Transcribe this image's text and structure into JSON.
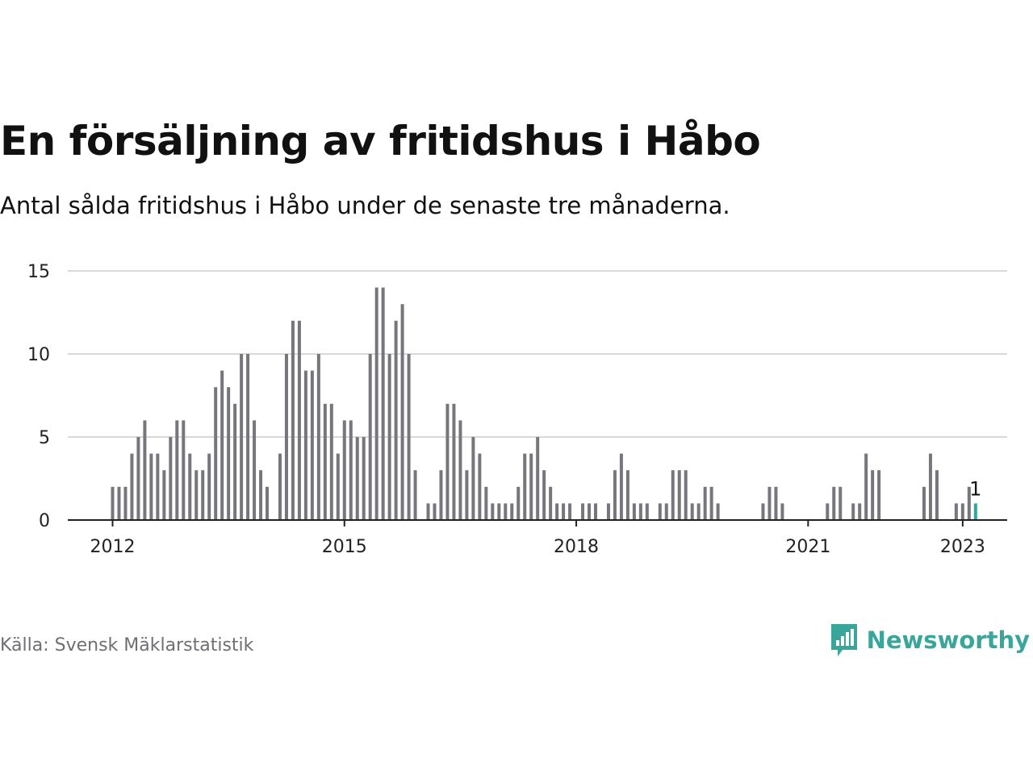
{
  "header": {
    "title": "En försäljning av fritidshus i Håbo",
    "subtitle": "Antal sålda fritidshus i Håbo under de senaste tre månaderna."
  },
  "footer": {
    "source": "Källa: Svensk Mäklarstatistik",
    "brand": "Newsworthy",
    "brand_icon": "newsworthy-logo-icon"
  },
  "colors": {
    "bar": "#77767c",
    "highlight": "#2aa9a0",
    "grid": "#d9d9d9",
    "axis": "#222222",
    "brand": "#3aa59a"
  },
  "chart_data": {
    "type": "bar",
    "title": "En försäljning av fritidshus i Håbo",
    "subtitle": "Antal sålda fritidshus i Håbo under de senaste tre månaderna.",
    "xlabel": "",
    "ylabel": "",
    "ylim": [
      0,
      15
    ],
    "yticks": [
      0,
      5,
      10,
      15
    ],
    "xticks": [
      {
        "label": "2012",
        "index": 0
      },
      {
        "label": "2015",
        "index": 36
      },
      {
        "label": "2018",
        "index": 72
      },
      {
        "label": "2021",
        "index": 108
      },
      {
        "label": "2023",
        "index": 132
      }
    ],
    "grid": true,
    "start": "2012-01",
    "frequency": "monthly",
    "values": [
      2,
      2,
      2,
      4,
      5,
      6,
      4,
      4,
      3,
      5,
      6,
      6,
      4,
      3,
      3,
      4,
      8,
      9,
      8,
      7,
      10,
      10,
      6,
      3,
      2,
      0,
      4,
      10,
      12,
      12,
      9,
      9,
      10,
      7,
      7,
      4,
      6,
      6,
      5,
      5,
      10,
      14,
      14,
      10,
      12,
      13,
      10,
      3,
      0,
      1,
      1,
      3,
      7,
      7,
      6,
      3,
      5,
      4,
      2,
      1,
      1,
      1,
      1,
      2,
      4,
      4,
      5,
      3,
      2,
      1,
      1,
      1,
      0,
      1,
      1,
      1,
      0,
      1,
      3,
      4,
      3,
      1,
      1,
      1,
      0,
      1,
      1,
      3,
      3,
      3,
      1,
      1,
      2,
      2,
      1,
      0,
      0,
      0,
      0,
      0,
      0,
      1,
      2,
      2,
      1,
      0,
      0,
      0,
      0,
      0,
      0,
      1,
      2,
      2,
      0,
      1,
      1,
      4,
      3,
      3,
      0,
      0,
      0,
      0,
      0,
      0,
      2,
      4,
      3,
      0,
      0,
      1,
      1,
      2,
      1
    ],
    "highlight_last": true,
    "annotation": "1"
  }
}
